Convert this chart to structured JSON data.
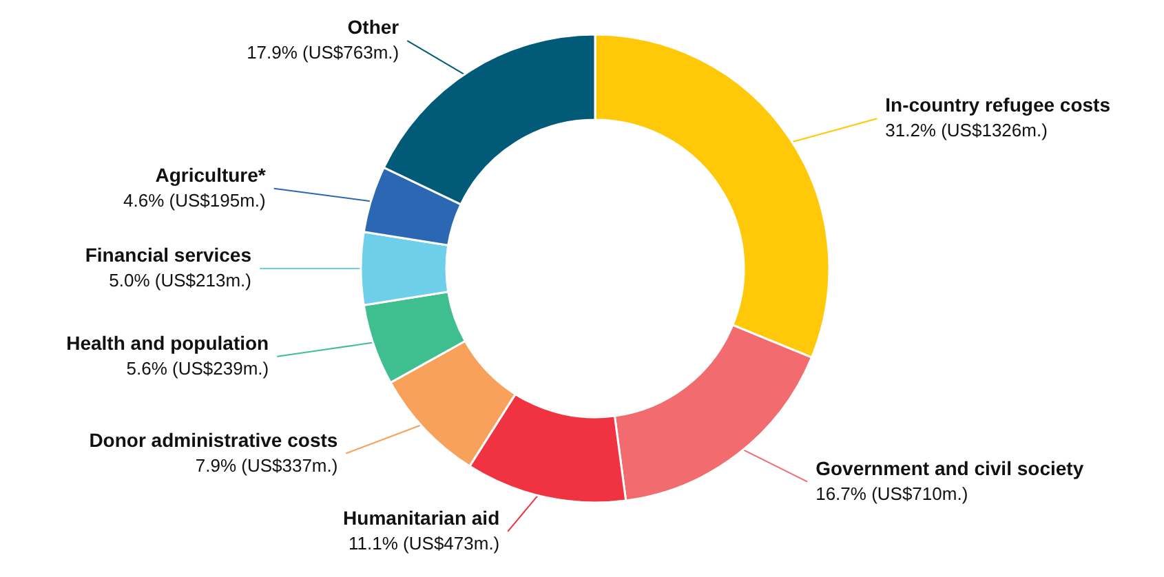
{
  "chart_data": {
    "type": "donut",
    "categories": [
      "In-country refugee costs",
      "Government and civil society",
      "Humanitarian aid",
      "Donor administrative costs",
      "Health and population",
      "Financial services",
      "Agriculture*",
      "Other"
    ],
    "values": [
      31.2,
      16.7,
      11.1,
      7.9,
      5.6,
      5.0,
      4.6,
      17.9
    ],
    "value_labels": [
      "31.2% (US$1326m.)",
      "16.7% (US$710m.)",
      "11.1% (US$473m.)",
      "7.9% (US$337m.)",
      "5.6% (US$239m.)",
      "5.0% (US$213m.)",
      "4.6% (US$195m.)",
      "17.9% (US$763m.)"
    ],
    "colors": [
      "#ffc90a",
      "#f26b6f",
      "#ef3340",
      "#f7a15a",
      "#3fbf8f",
      "#6ecfea",
      "#2b67b3",
      "#005a78"
    ]
  }
}
